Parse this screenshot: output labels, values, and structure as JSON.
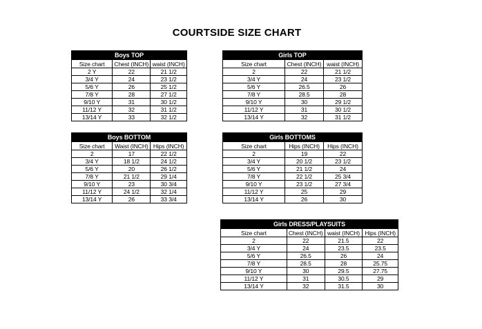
{
  "page": {
    "title": "COURTSIDE SIZE CHART"
  },
  "colors": {
    "background": "#ffffff",
    "table_header_bg": "#000000",
    "table_header_text": "#ffffff",
    "border": "#000000",
    "text": "#000000"
  },
  "tables": [
    {
      "id": "boys-top",
      "title": "Boys TOP",
      "columns": [
        "Size chart",
        "Chest (INCH)",
        "waist (INCH)"
      ],
      "rows": [
        [
          "2 Y",
          "22",
          "21 1/2"
        ],
        [
          "3/4 Y",
          "24",
          "23 1/2"
        ],
        [
          "5/6 Y",
          "26",
          "25 1/2"
        ],
        [
          "7/8 Y",
          "28",
          "27 1/2"
        ],
        [
          "9/10 Y",
          "31",
          "30 1/2"
        ],
        [
          "11/12 Y",
          "32",
          "31 1/2"
        ],
        [
          "13/14 Y",
          "33",
          "32 1/2"
        ]
      ]
    },
    {
      "id": "girls-top",
      "title": "Girls TOP",
      "columns": [
        "Size chart",
        "Chest (INCH)",
        "waist (INCH)"
      ],
      "rows": [
        [
          "2",
          "22",
          "21 1/2"
        ],
        [
          "3/4 Y",
          "24",
          "23 1/2"
        ],
        [
          "5/6 Y",
          "26.5",
          "26"
        ],
        [
          "7/8 Y",
          "28.5",
          "28"
        ],
        [
          "9/10 Y",
          "30",
          "29 1/2"
        ],
        [
          "11/12 Y",
          "31",
          "30 1/2"
        ],
        [
          "13/14 Y",
          "32",
          "31 1/2"
        ]
      ]
    },
    {
      "id": "boys-bottom",
      "title": "Boys BOTTOM",
      "columns": [
        "Size chart",
        "Waist (INCH)",
        "Hips (INCH)"
      ],
      "rows": [
        [
          "2",
          "17",
          "22 1/2"
        ],
        [
          "3/4 Y",
          "18 1/2",
          "24 1/2"
        ],
        [
          "5/6 Y",
          "20",
          "26 1/2"
        ],
        [
          "7/8 Y",
          "21 1/2",
          "29 1/4"
        ],
        [
          "9/10 Y",
          "23",
          "30 3/4"
        ],
        [
          "11/12 Y",
          "24 1/2",
          "32 1/4"
        ],
        [
          "13/14 Y",
          "26",
          "33 3/4"
        ]
      ]
    },
    {
      "id": "girls-bottoms",
      "title": "Girls BOTTOMS",
      "columns": [
        "Size chart",
        "Hips (INCH)",
        "Hips (INCH)"
      ],
      "rows": [
        [
          "2",
          "19",
          "22"
        ],
        [
          "3/4 Y",
          "20 1/2",
          "23 1/2"
        ],
        [
          "5/6 Y",
          "21 1/2",
          "24"
        ],
        [
          "7/8 Y",
          "22 1/2",
          "25 3/4"
        ],
        [
          "9/10 Y",
          "23 1/2",
          "27 3/4"
        ],
        [
          "11/12 Y",
          "25",
          "29"
        ],
        [
          "13/14 Y",
          "26",
          "30"
        ]
      ]
    },
    {
      "id": "girls-dress-playsuits",
      "title": "Girls DRESS/PLAYSUITS",
      "columns": [
        "Size chart",
        "Chest (INCH)",
        "waist (INCH)",
        "Hips (INCH)"
      ],
      "rows": [
        [
          "2",
          "22",
          "21.5",
          "22"
        ],
        [
          "3/4 Y",
          "24",
          "23.5",
          "23.5"
        ],
        [
          "5/6 Y",
          "26.5",
          "26",
          "24"
        ],
        [
          "7/8 Y",
          "28.5",
          "28",
          "25.75"
        ],
        [
          "9/10 Y",
          "30",
          "29.5",
          "27.75"
        ],
        [
          "11/12 Y",
          "31",
          "30.5",
          "29"
        ],
        [
          "13/14 Y",
          "32",
          "31.5",
          "30"
        ]
      ]
    }
  ]
}
